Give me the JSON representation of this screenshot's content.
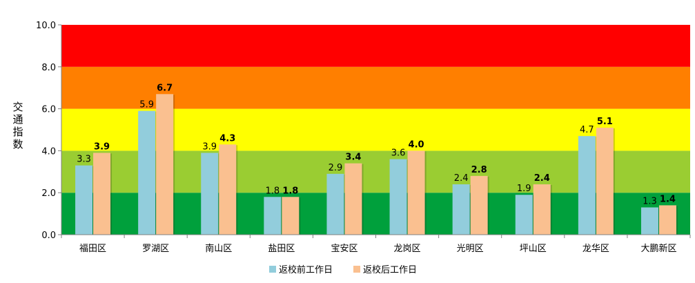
{
  "chart_data": {
    "type": "bar",
    "ylabel": "交通指数",
    "ylim": [
      0,
      10
    ],
    "yticks": [
      "0.0",
      "2.0",
      "4.0",
      "6.0",
      "8.0",
      "10.0"
    ],
    "categories": [
      "福田区",
      "罗湖区",
      "南山区",
      "盐田区",
      "宝安区",
      "龙岗区",
      "光明区",
      "坪山区",
      "龙华区",
      "大鹏新区"
    ],
    "series": [
      {
        "name": "返校前工作日",
        "color": "#92CDDC",
        "values": [
          3.3,
          5.9,
          3.9,
          1.8,
          2.9,
          3.6,
          2.4,
          1.9,
          4.7,
          1.3
        ],
        "labels": [
          "3.3",
          "5.9",
          "3.9",
          "1.8",
          "2.9",
          "3.6",
          "2.4",
          "1.9",
          "4.7",
          "1.3"
        ]
      },
      {
        "name": "返校后工作日",
        "color": "#FAC090",
        "values": [
          3.9,
          6.7,
          4.3,
          1.8,
          3.4,
          4.0,
          2.8,
          2.4,
          5.1,
          1.4
        ],
        "labels": [
          "3.9",
          "6.7",
          "4.3",
          "1.8",
          "3.4",
          "4.0",
          "2.8",
          "2.4",
          "5.1",
          "1.4"
        ]
      }
    ],
    "bands": [
      {
        "from": 0,
        "to": 2,
        "color": "#00A03C"
      },
      {
        "from": 2,
        "to": 4,
        "color": "#9ACD32"
      },
      {
        "from": 4,
        "to": 6,
        "color": "#FFFF00"
      },
      {
        "from": 6,
        "to": 8,
        "color": "#FF7F00"
      },
      {
        "from": 8,
        "to": 10,
        "color": "#FF0000"
      }
    ],
    "legend_position": "bottom"
  }
}
